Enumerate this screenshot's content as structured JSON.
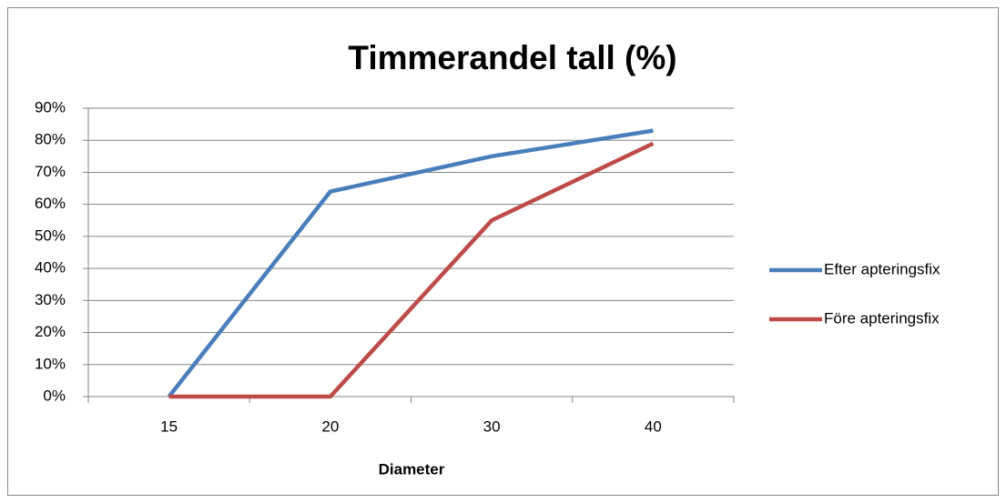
{
  "chart_data": {
    "type": "line",
    "title": "Timmerandel tall (%)",
    "x_label": "Diameter",
    "categories": [
      "15",
      "20",
      "30",
      "40"
    ],
    "series": [
      {
        "name": "Efter apteringsfix",
        "color": "#4a7ebb",
        "values": [
          0,
          64,
          75,
          83
        ]
      },
      {
        "name": "Före apteringsfix",
        "color": "#be4b48",
        "values": [
          0,
          0,
          55,
          79
        ]
      }
    ],
    "ylim": [
      0,
      90
    ],
    "yticks": [
      {
        "value": 0,
        "label": "0%"
      },
      {
        "value": 10,
        "label": "10%"
      },
      {
        "value": 20,
        "label": "20%"
      },
      {
        "value": 30,
        "label": "30%"
      },
      {
        "value": 40,
        "label": "40%"
      },
      {
        "value": 50,
        "label": "50%"
      },
      {
        "value": 60,
        "label": "60%"
      },
      {
        "value": 70,
        "label": "70%"
      },
      {
        "value": 80,
        "label": "80%"
      },
      {
        "value": 90,
        "label": "90%"
      }
    ],
    "grid": true,
    "legend": "right"
  }
}
